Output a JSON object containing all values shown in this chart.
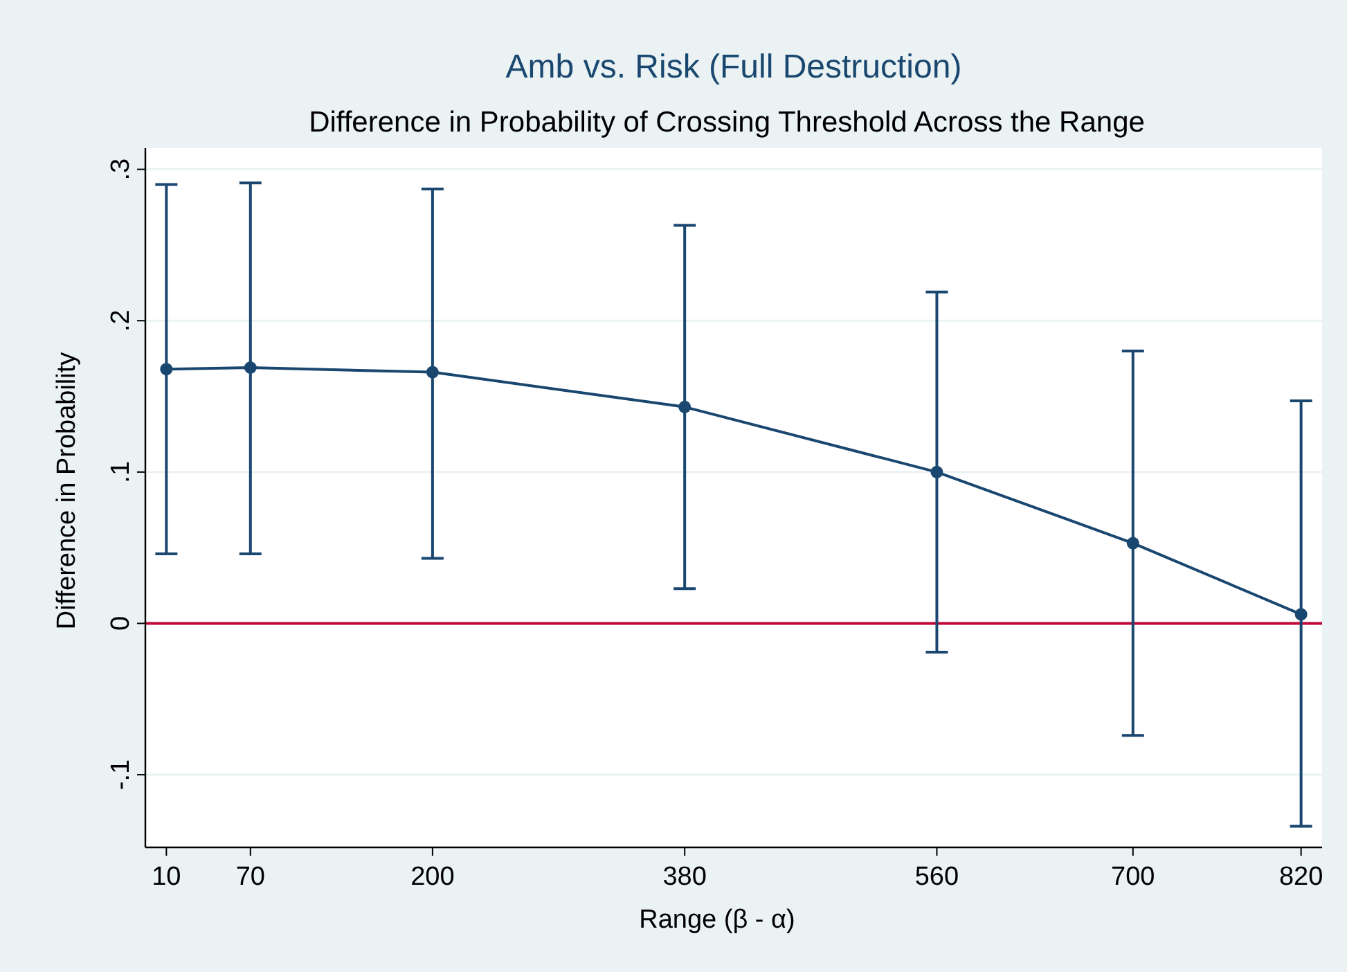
{
  "chart_data": {
    "type": "line",
    "title": "Amb vs. Risk (Full Destruction)",
    "subtitle": "Difference in Probability of Crossing Threshold Across the Range",
    "xlabel": "Range (β - α)",
    "ylabel": "Difference in Probability",
    "x": [
      10,
      70,
      200,
      380,
      560,
      700,
      820
    ],
    "series": [
      {
        "color": "#1a476f",
        "values": [
          0.168,
          0.169,
          0.166,
          0.143,
          0.1,
          0.053,
          0.006
        ],
        "errors": [
          [
            0.046,
            0.29
          ],
          [
            0.046,
            0.291
          ],
          [
            0.043,
            0.287
          ],
          [
            0.023,
            0.263
          ],
          [
            -0.019,
            0.219
          ],
          [
            -0.074,
            0.18
          ],
          [
            -0.134,
            0.147
          ]
        ]
      }
    ],
    "xlim": [
      -5,
      835
    ],
    "xticks": [
      10,
      70,
      200,
      380,
      560,
      700,
      820
    ],
    "ylim": [
      -0.148,
      0.314
    ],
    "yticks": [
      {
        "value": -0.1,
        "label": "-.1"
      },
      {
        "value": 0,
        "label": "0"
      },
      {
        "value": 0.1,
        "label": ".1"
      },
      {
        "value": 0.2,
        "label": ".2"
      },
      {
        "value": 0.3,
        "label": ".3"
      }
    ],
    "grid": "y",
    "marker": "circle",
    "line_style": "solid",
    "ref_lines": [
      {
        "axis": "y",
        "value": 0,
        "color": "#c10534"
      }
    ]
  }
}
